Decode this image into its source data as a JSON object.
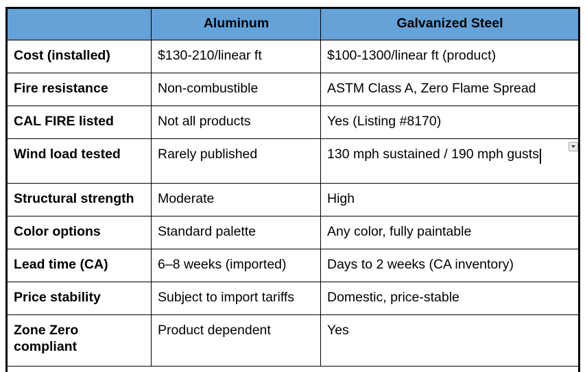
{
  "table": {
    "colors": {
      "header_bg": "#64a2d8",
      "border": "#000000",
      "dropdown_bg": "#e9e9e9"
    },
    "columns": [
      "",
      "Aluminum",
      "Galvanized Steel"
    ],
    "rows": [
      {
        "label": "Cost (installed)",
        "aluminum": "$130-210/linear ft",
        "steel": "$100-1300/linear ft (product)"
      },
      {
        "label": "Fire resistance",
        "aluminum": "Non-combustible",
        "steel": "ASTM Class A, Zero Flame Spread"
      },
      {
        "label": "CAL FIRE listed",
        "aluminum": "Not all products",
        "steel": "Yes (Listing #8170)"
      },
      {
        "label": "Wind load tested",
        "aluminum": "Rarely published",
        "steel": "130 mph sustained / 190 mph gusts",
        "has_cursor": true,
        "has_dropdown": true
      },
      {
        "label": "Structural strength",
        "aluminum": "Moderate",
        "steel": "High"
      },
      {
        "label": "Color options",
        "aluminum": "Standard palette",
        "steel": "Any color, fully paintable"
      },
      {
        "label": "Lead time (CA)",
        "aluminum": "6–8 weeks (imported)",
        "steel": "Days to 2 weeks (CA inventory)"
      },
      {
        "label": "Price stability",
        "aluminum": "Subject to import tariffs",
        "steel": "Domestic, price-stable"
      },
      {
        "label": "Zone Zero\ncompliant",
        "aluminum": "Product dependent",
        "steel": "Yes"
      }
    ]
  }
}
